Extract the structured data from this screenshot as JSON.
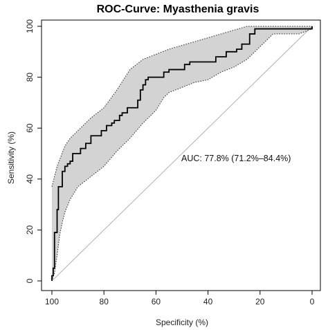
{
  "chart_data": {
    "type": "line",
    "title": "ROC-Curve: Myasthenia gravis",
    "xlabel": "Specificity (%)",
    "ylabel": "Sensitivity (%)",
    "xlim": [
      100,
      0
    ],
    "ylim": [
      0,
      100
    ],
    "x_reversed": true,
    "x_ticks": [
      100,
      80,
      60,
      40,
      20,
      0
    ],
    "y_ticks": [
      0,
      20,
      40,
      60,
      80,
      100
    ],
    "x_tick_labels": [
      "100",
      "80",
      "60",
      "40",
      "20",
      "0"
    ],
    "y_tick_labels": [
      "0",
      "20",
      "40",
      "60",
      "80",
      "100"
    ],
    "grid": false,
    "annotation": "AUC: 77.8% (71.2%–84.4%)",
    "colors": {
      "roc_line": "#000000",
      "ci_fill": "#d3d3d3",
      "ci_border": "#222222",
      "diagonal": "#b0b0b0"
    },
    "series": [
      {
        "kind": "roc",
        "points": [
          [
            100,
            0
          ],
          [
            100,
            2
          ],
          [
            99.5,
            2
          ],
          [
            99.5,
            5
          ],
          [
            99,
            5
          ],
          [
            99,
            19
          ],
          [
            98,
            19
          ],
          [
            98,
            28
          ],
          [
            97.5,
            28
          ],
          [
            97.5,
            37
          ],
          [
            96,
            37
          ],
          [
            96,
            43
          ],
          [
            95,
            43
          ],
          [
            95,
            45
          ],
          [
            94,
            45
          ],
          [
            94,
            46
          ],
          [
            93,
            46
          ],
          [
            93,
            47
          ],
          [
            92,
            47
          ],
          [
            92,
            50
          ],
          [
            89,
            50
          ],
          [
            89,
            52
          ],
          [
            87,
            52
          ],
          [
            87,
            54
          ],
          [
            85,
            54
          ],
          [
            85,
            57
          ],
          [
            81,
            57
          ],
          [
            81,
            59
          ],
          [
            79,
            59
          ],
          [
            79,
            61
          ],
          [
            77,
            61
          ],
          [
            77,
            62
          ],
          [
            76,
            62
          ],
          [
            76,
            63
          ],
          [
            74,
            63
          ],
          [
            74,
            65
          ],
          [
            73,
            65
          ],
          [
            73,
            66
          ],
          [
            71,
            66
          ],
          [
            71,
            68
          ],
          [
            67,
            68
          ],
          [
            67,
            71
          ],
          [
            66,
            71
          ],
          [
            66,
            75
          ],
          [
            65,
            75
          ],
          [
            65,
            77
          ],
          [
            64,
            77
          ],
          [
            64,
            79
          ],
          [
            63,
            79
          ],
          [
            63,
            80
          ],
          [
            57,
            80
          ],
          [
            57,
            82
          ],
          [
            55,
            82
          ],
          [
            55,
            83
          ],
          [
            49,
            83
          ],
          [
            49,
            85
          ],
          [
            47,
            85
          ],
          [
            47,
            86
          ],
          [
            37,
            86
          ],
          [
            37,
            88
          ],
          [
            33,
            88
          ],
          [
            33,
            90
          ],
          [
            29,
            90
          ],
          [
            29,
            91
          ],
          [
            27,
            91
          ],
          [
            27,
            93
          ],
          [
            24,
            93
          ],
          [
            24,
            97
          ],
          [
            22,
            97
          ],
          [
            22,
            99
          ],
          [
            0,
            99
          ],
          [
            0,
            100
          ]
        ]
      },
      {
        "kind": "ci_upper",
        "points": [
          [
            100,
            37
          ],
          [
            98,
            45
          ],
          [
            95,
            53
          ],
          [
            93,
            56
          ],
          [
            90,
            59
          ],
          [
            85,
            64
          ],
          [
            80,
            68
          ],
          [
            75,
            75
          ],
          [
            70,
            83
          ],
          [
            65,
            87
          ],
          [
            60,
            89
          ],
          [
            55,
            91
          ],
          [
            50,
            92.5
          ],
          [
            45,
            94
          ],
          [
            40,
            95.5
          ],
          [
            35,
            97
          ],
          [
            30,
            98.5
          ],
          [
            25,
            100
          ],
          [
            0,
            100
          ]
        ]
      },
      {
        "kind": "ci_lower",
        "points": [
          [
            100,
            0
          ],
          [
            99,
            3
          ],
          [
            98,
            10
          ],
          [
            97,
            18
          ],
          [
            96,
            23
          ],
          [
            95,
            27
          ],
          [
            93,
            32
          ],
          [
            90,
            37
          ],
          [
            85,
            41
          ],
          [
            80,
            45
          ],
          [
            75,
            51
          ],
          [
            70,
            56
          ],
          [
            65,
            62
          ],
          [
            60,
            67
          ],
          [
            57,
            72
          ],
          [
            55,
            74
          ],
          [
            50,
            76
          ],
          [
            45,
            78
          ],
          [
            40,
            79
          ],
          [
            35,
            82
          ],
          [
            30,
            84
          ],
          [
            25,
            87
          ],
          [
            20,
            92
          ],
          [
            15,
            97
          ],
          [
            5,
            97
          ],
          [
            0,
            99
          ]
        ]
      }
    ]
  }
}
